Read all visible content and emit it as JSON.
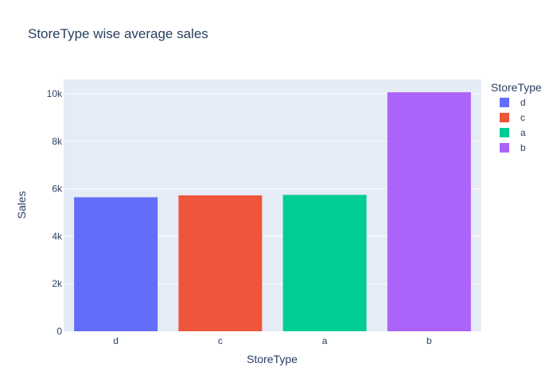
{
  "chart_data": {
    "type": "bar",
    "title": "StoreType wise average sales",
    "xlabel": "StoreType",
    "ylabel": "Sales",
    "categories": [
      "d",
      "c",
      "a",
      "b"
    ],
    "values": [
      5640,
      5720,
      5740,
      10060
    ],
    "colors": [
      "#636efa",
      "#ef553b",
      "#00cc96",
      "#ab63fa"
    ],
    "ylim": [
      0,
      10600
    ],
    "yticks": [
      0,
      2000,
      4000,
      6000,
      8000,
      10000
    ],
    "ytick_labels": [
      "0",
      "2k",
      "4k",
      "6k",
      "8k",
      "10k"
    ],
    "grid": true,
    "legend": {
      "title": "StoreType",
      "position": "right",
      "entries": [
        "d",
        "c",
        "a",
        "b"
      ]
    }
  }
}
